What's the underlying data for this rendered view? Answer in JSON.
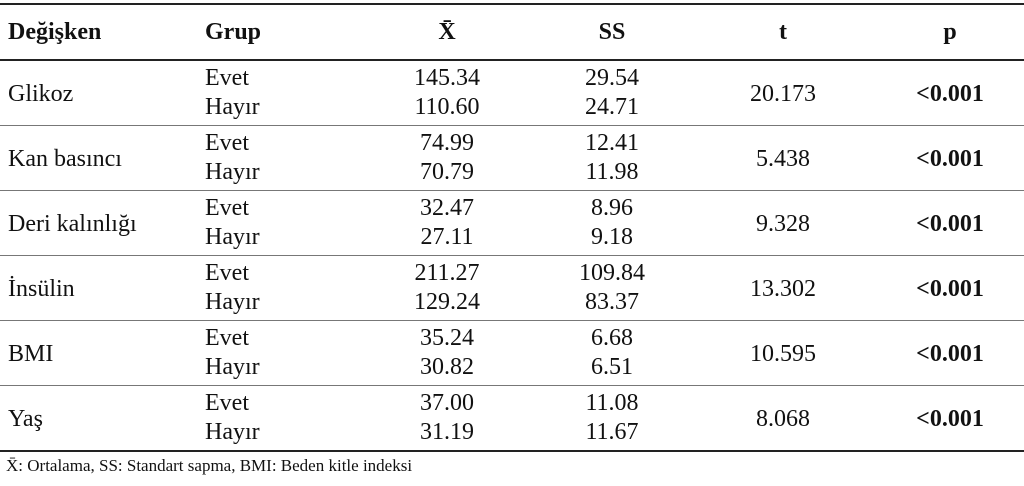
{
  "table": {
    "header": [
      "Değişken",
      "Grup",
      "X̄",
      "SS",
      "t",
      "p"
    ],
    "rows": [
      {
        "variable": "Glikoz",
        "groups": [
          {
            "group": "Evet",
            "mean": "145.34",
            "sd": "29.54"
          },
          {
            "group": "Hayır",
            "mean": "110.60",
            "sd": "24.71"
          }
        ],
        "t": "20.173",
        "p": "<0.001"
      },
      {
        "variable": "Kan basıncı",
        "groups": [
          {
            "group": "Evet",
            "mean": "74.99",
            "sd": "12.41"
          },
          {
            "group": "Hayır",
            "mean": "70.79",
            "sd": "11.98"
          }
        ],
        "t": "5.438",
        "p": "<0.001"
      },
      {
        "variable": "Deri kalınlığı",
        "groups": [
          {
            "group": "Evet",
            "mean": "32.47",
            "sd": "8.96"
          },
          {
            "group": "Hayır",
            "mean": "27.11",
            "sd": "9.18"
          }
        ],
        "t": "9.328",
        "p": "<0.001"
      },
      {
        "variable": "İnsülin",
        "groups": [
          {
            "group": "Evet",
            "mean": "211.27",
            "sd": "109.84"
          },
          {
            "group": "Hayır",
            "mean": "129.24",
            "sd": "83.37"
          }
        ],
        "t": "13.302",
        "p": "<0.001"
      },
      {
        "variable": "BMI",
        "groups": [
          {
            "group": "Evet",
            "mean": "35.24",
            "sd": "6.68"
          },
          {
            "group": "Hayır",
            "mean": "30.82",
            "sd": "6.51"
          }
        ],
        "t": "10.595",
        "p": "<0.001"
      },
      {
        "variable": "Yaş",
        "groups": [
          {
            "group": "Evet",
            "mean": "37.00",
            "sd": "11.08"
          },
          {
            "group": "Hayır",
            "mean": "31.19",
            "sd": "11.67"
          }
        ],
        "t": "8.068",
        "p": "<0.001"
      }
    ]
  },
  "footnote": "X̄: Ortalama, SS: Standart sapma, BMI: Beden kitle indeksi"
}
